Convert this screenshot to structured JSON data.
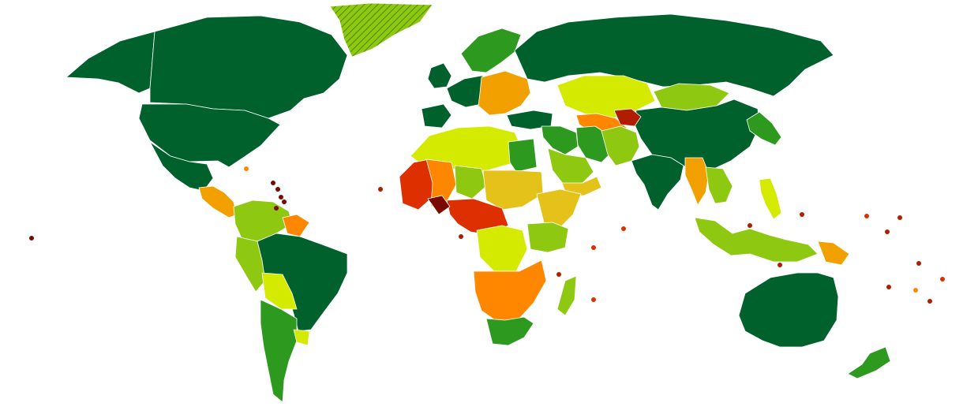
{
  "map": {
    "kind": "choropleth-world-map",
    "legend_shown": false,
    "background": "#ffffff",
    "border_color": "#ffffff",
    "palette": {
      "dark_green": "#00612c",
      "green": "#2d9a1f",
      "light_green": "#8ec811",
      "yellow_green": "#d4ea00",
      "yellow": "#e5c21a",
      "amber": "#f2a000",
      "orange": "#ff8700",
      "red_orange": "#ef5a00",
      "red": "#dd2f00",
      "dark_red": "#b01d00",
      "maroon": "#7a0a00",
      "hatched": "#8ec811"
    },
    "regions": [
      {
        "name": "canada-region",
        "fill": "dark_green"
      },
      {
        "name": "usa-region",
        "fill": "dark_green"
      },
      {
        "name": "alaska-region",
        "fill": "dark_green"
      },
      {
        "name": "mexico-region",
        "fill": "dark_green"
      },
      {
        "name": "greenland-region",
        "fill": "hatched"
      },
      {
        "name": "central-america-region",
        "fill": "amber"
      },
      {
        "name": "colombia-venezuela-region",
        "fill": "light_green"
      },
      {
        "name": "guianas-region",
        "fill": "orange"
      },
      {
        "name": "brazil-region",
        "fill": "dark_green"
      },
      {
        "name": "peru-region",
        "fill": "light_green"
      },
      {
        "name": "bolivia-region",
        "fill": "yellow_green"
      },
      {
        "name": "chile-argentina-region",
        "fill": "green"
      },
      {
        "name": "uruguay-region",
        "fill": "yellow_green"
      },
      {
        "name": "scandinavia-region",
        "fill": "green"
      },
      {
        "name": "western-europe-region",
        "fill": "dark_green"
      },
      {
        "name": "uk-ireland-region",
        "fill": "dark_green"
      },
      {
        "name": "iberia-region",
        "fill": "dark_green"
      },
      {
        "name": "eastern-europe-region",
        "fill": "amber"
      },
      {
        "name": "russia-region",
        "fill": "dark_green"
      },
      {
        "name": "kazakhstan-region",
        "fill": "yellow_green"
      },
      {
        "name": "mongolia-region",
        "fill": "light_green"
      },
      {
        "name": "china-region",
        "fill": "dark_green"
      },
      {
        "name": "central-asia-region",
        "fill": "orange"
      },
      {
        "name": "tajikistan-region",
        "fill": "dark_red"
      },
      {
        "name": "turkey-region",
        "fill": "dark_green"
      },
      {
        "name": "middle-east-region",
        "fill": "green"
      },
      {
        "name": "saudi-arabia-region",
        "fill": "light_green"
      },
      {
        "name": "yemen-region",
        "fill": "yellow"
      },
      {
        "name": "iran-region",
        "fill": "green"
      },
      {
        "name": "afghanistan-pakistan-region",
        "fill": "light_green"
      },
      {
        "name": "india-region",
        "fill": "dark_green"
      },
      {
        "name": "southeast-asia-region",
        "fill": "amber"
      },
      {
        "name": "indochina-region",
        "fill": "light_green"
      },
      {
        "name": "japan-korea-region",
        "fill": "green"
      },
      {
        "name": "indonesia-region",
        "fill": "light_green"
      },
      {
        "name": "philippines-region",
        "fill": "yellow_green"
      },
      {
        "name": "papua-region",
        "fill": "amber"
      },
      {
        "name": "australia-region",
        "fill": "dark_green"
      },
      {
        "name": "new-zealand-region",
        "fill": "green"
      },
      {
        "name": "north-africa-region",
        "fill": "yellow_green"
      },
      {
        "name": "egypt-region",
        "fill": "green"
      },
      {
        "name": "west-africa-region",
        "fill": "red"
      },
      {
        "name": "mali-region",
        "fill": "orange"
      },
      {
        "name": "niger-region",
        "fill": "light_green"
      },
      {
        "name": "chad-sudan-region",
        "fill": "yellow"
      },
      {
        "name": "central-african-region",
        "fill": "red"
      },
      {
        "name": "central-african-core-region",
        "fill": "maroon"
      },
      {
        "name": "horn-of-africa-region",
        "fill": "yellow"
      },
      {
        "name": "drc-region",
        "fill": "yellow_green"
      },
      {
        "name": "east-africa-region",
        "fill": "light_green"
      },
      {
        "name": "southern-africa-region",
        "fill": "orange"
      },
      {
        "name": "south-africa-region",
        "fill": "green"
      },
      {
        "name": "madagascar-region",
        "fill": "light_green"
      }
    ]
  }
}
